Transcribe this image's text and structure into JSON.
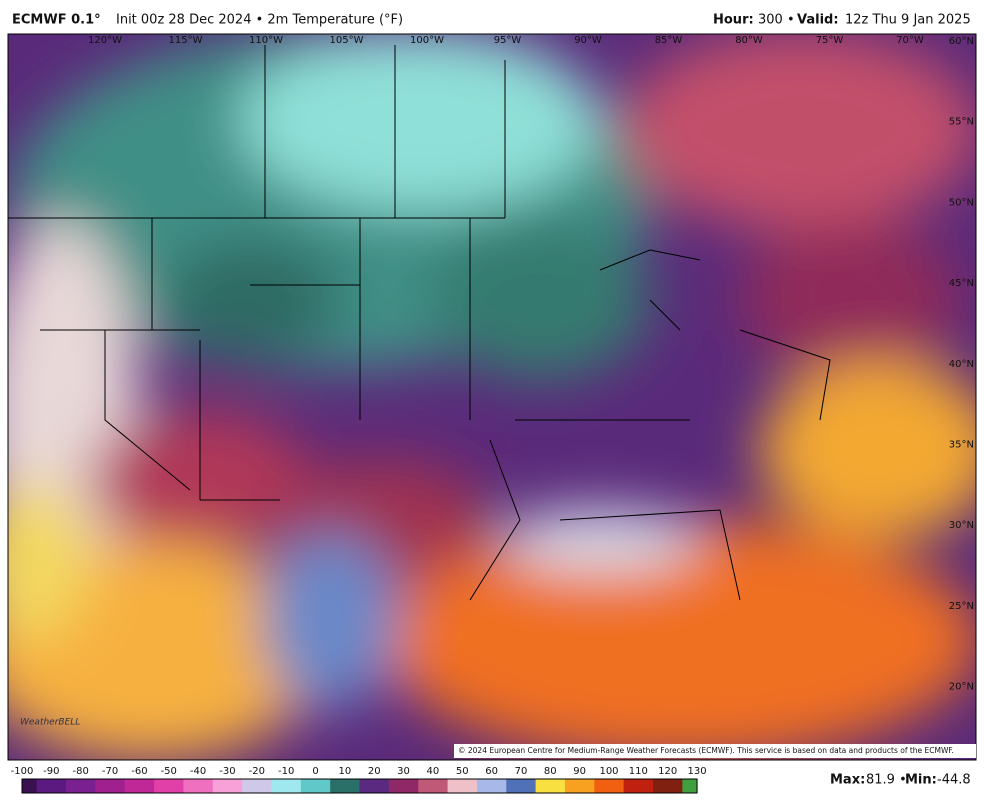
{
  "header": {
    "model": "ECMWF 0.1°",
    "run": "Init 00z 28 Dec 2024 • 2m Temperature (°F)",
    "hour_label": "Hour:",
    "hour": "300 •",
    "valid_label": "Valid:",
    "valid": "12z Thu 9 Jan 2025"
  },
  "map": {
    "lon_labels": [
      "120°W",
      "115°W",
      "110°W",
      "105°W",
      "100°W",
      "95°W",
      "90°W",
      "85°W",
      "80°W",
      "75°W",
      "70°W"
    ],
    "lat_labels": [
      "60°N",
      "55°N",
      "50°N",
      "45°N",
      "40°N",
      "35°N",
      "30°N",
      "25°N",
      "20°N"
    ],
    "logo": "WeatherBELL",
    "copyright": "© 2024 European Centre for Medium-Range Weather Forecasts (ECMWF). This service is based on data and products of the ECMWF."
  },
  "colorbar": {
    "ticks": [
      -100,
      -90,
      -80,
      -70,
      -60,
      -50,
      -40,
      -30,
      -20,
      -10,
      0,
      10,
      20,
      30,
      40,
      50,
      60,
      70,
      80,
      90,
      100,
      110,
      120,
      130
    ]
  },
  "footer": {
    "max_label": "Max:",
    "max": "81.9 •",
    "min_label": "Min:",
    "min": "-44.8"
  }
}
